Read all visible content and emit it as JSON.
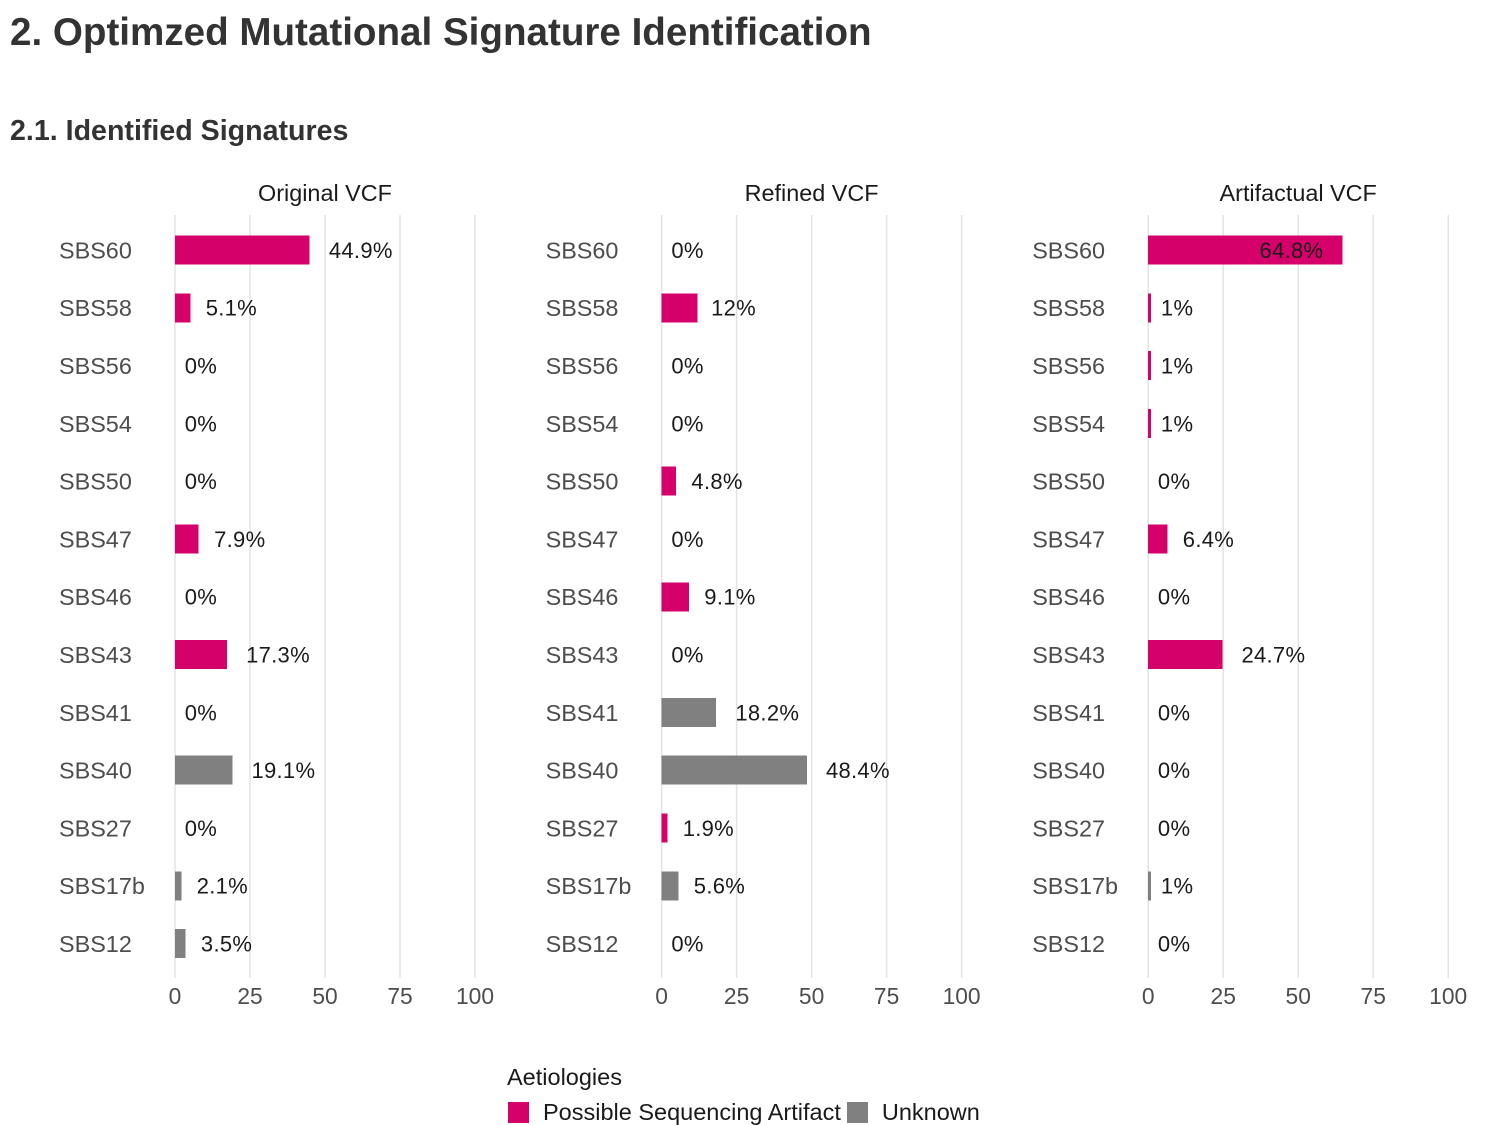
{
  "header": {
    "title": "2. Optimzed Mutational Signature Identification",
    "subtitle": "2.1. Identified Signatures"
  },
  "legend": {
    "title": "Aetiologies",
    "items": [
      {
        "label": "Possible Sequencing Artifact",
        "color": "#D6006A"
      },
      {
        "label": "Unknown",
        "color": "#808080"
      }
    ]
  },
  "chart_data": [
    {
      "type": "bar",
      "orientation": "horizontal",
      "title": "Original VCF",
      "categories": [
        "SBS60",
        "SBS58",
        "SBS56",
        "SBS54",
        "SBS50",
        "SBS47",
        "SBS46",
        "SBS43",
        "SBS41",
        "SBS40",
        "SBS27",
        "SBS17b",
        "SBS12"
      ],
      "values": [
        44.9,
        5.1,
        0,
        0,
        0,
        7.9,
        0,
        17.3,
        0,
        19.1,
        0,
        2.1,
        3.5
      ],
      "labels": [
        "44.9%",
        "5.1%",
        "0%",
        "0%",
        "0%",
        "7.9%",
        "0%",
        "17.3%",
        "0%",
        "19.1%",
        "0%",
        "2.1%",
        "3.5%"
      ],
      "bar_colors": [
        "#D6006A",
        "#D6006A",
        "#D6006A",
        "#D6006A",
        "#D6006A",
        "#D6006A",
        "#D6006A",
        "#D6006A",
        "#808080",
        "#808080",
        "#D6006A",
        "#808080",
        "#808080"
      ],
      "xlim": [
        0,
        100
      ],
      "xticks": [
        0,
        25,
        50,
        75,
        100
      ],
      "grid": true,
      "legend_position": "bottom"
    },
    {
      "type": "bar",
      "orientation": "horizontal",
      "title": "Refined VCF",
      "categories": [
        "SBS60",
        "SBS58",
        "SBS56",
        "SBS54",
        "SBS50",
        "SBS47",
        "SBS46",
        "SBS43",
        "SBS41",
        "SBS40",
        "SBS27",
        "SBS17b",
        "SBS12"
      ],
      "values": [
        0,
        12,
        0,
        0,
        4.8,
        0,
        9.1,
        0,
        18.2,
        48.4,
        1.9,
        5.6,
        0
      ],
      "labels": [
        "0%",
        "12%",
        "0%",
        "0%",
        "4.8%",
        "0%",
        "9.1%",
        "0%",
        "18.2%",
        "48.4%",
        "1.9%",
        "5.6%",
        "0%"
      ],
      "bar_colors": [
        "#D6006A",
        "#D6006A",
        "#D6006A",
        "#D6006A",
        "#D6006A",
        "#D6006A",
        "#D6006A",
        "#D6006A",
        "#808080",
        "#808080",
        "#D6006A",
        "#808080",
        "#808080"
      ],
      "xlim": [
        0,
        100
      ],
      "xticks": [
        0,
        25,
        50,
        75,
        100
      ],
      "grid": true,
      "legend_position": "bottom"
    },
    {
      "type": "bar",
      "orientation": "horizontal",
      "title": "Artifactual VCF",
      "categories": [
        "SBS60",
        "SBS58",
        "SBS56",
        "SBS54",
        "SBS50",
        "SBS47",
        "SBS46",
        "SBS43",
        "SBS41",
        "SBS40",
        "SBS27",
        "SBS17b",
        "SBS12"
      ],
      "values": [
        64.8,
        1,
        1,
        1,
        0,
        6.4,
        0,
        24.7,
        0,
        0,
        0,
        1,
        0
      ],
      "labels": [
        "64.8%",
        "1%",
        "1%",
        "1%",
        "0%",
        "6.4%",
        "0%",
        "24.7%",
        "0%",
        "0%",
        "0%",
        "1%",
        "0%"
      ],
      "bar_colors": [
        "#D6006A",
        "#D6006A",
        "#D6006A",
        "#D6006A",
        "#D6006A",
        "#D6006A",
        "#D6006A",
        "#D6006A",
        "#808080",
        "#808080",
        "#D6006A",
        "#808080",
        "#808080"
      ],
      "xlim": [
        0,
        100
      ],
      "xticks": [
        0,
        25,
        50,
        75,
        100
      ],
      "grid": true,
      "legend_position": "bottom"
    }
  ]
}
